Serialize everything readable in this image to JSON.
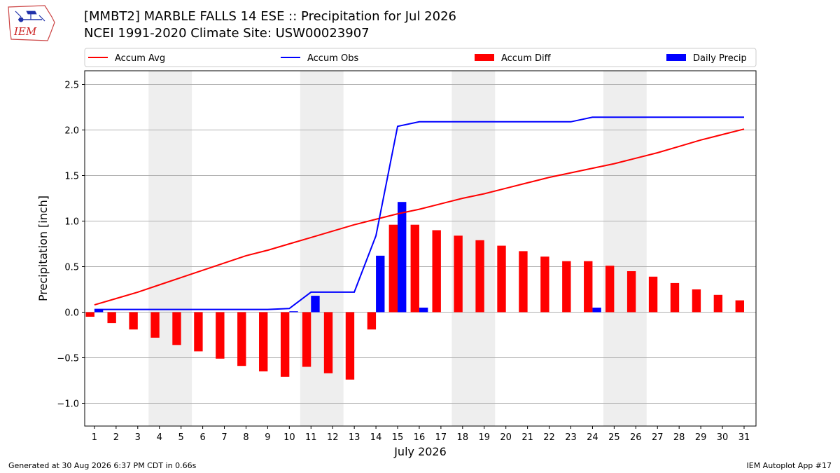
{
  "header": {
    "logo_text": "IEM",
    "title_line1": "[MMBT2] MARBLE FALLS 14 ESE :: Precipitation for Jul 2026",
    "title_line2": "NCEI 1991-2020 Climate Site: USW00023907"
  },
  "footer": {
    "generated": "Generated at 30 Aug 2026 6:37 PM CDT in 0.66s",
    "app": "IEM Autoplot App #17"
  },
  "chart_data": {
    "type": "bar",
    "xlabel": "July 2026",
    "ylabel": "Precipitation [inch]",
    "ylim": [
      -1.25,
      2.65
    ],
    "xlim": [
      0.55,
      31.55
    ],
    "yticks": [
      -1.0,
      -0.5,
      0.0,
      0.5,
      1.0,
      1.5,
      2.0,
      2.5
    ],
    "ytick_labels": [
      "−1.0",
      "−0.5",
      "0.0",
      "0.5",
      "1.0",
      "1.5",
      "2.0",
      "2.5"
    ],
    "grid": "horizontal",
    "weekend_shading": [
      [
        4,
        5
      ],
      [
        11,
        12
      ],
      [
        18,
        19
      ],
      [
        25,
        26
      ]
    ],
    "shading_color": "#eeeeee",
    "legend_position": "top",
    "days": [
      1,
      2,
      3,
      4,
      5,
      6,
      7,
      8,
      9,
      10,
      11,
      12,
      13,
      14,
      15,
      16,
      17,
      18,
      19,
      20,
      21,
      22,
      23,
      24,
      25,
      26,
      27,
      28,
      29,
      30,
      31
    ],
    "series": [
      {
        "name": "Accum Avg",
        "kind": "line",
        "color": "#ff0000",
        "values": [
          0.08,
          0.15,
          0.22,
          0.3,
          0.38,
          0.46,
          0.54,
          0.62,
          0.68,
          0.75,
          0.82,
          0.89,
          0.96,
          1.02,
          1.08,
          1.13,
          1.19,
          1.25,
          1.3,
          1.36,
          1.42,
          1.48,
          1.53,
          1.58,
          1.63,
          1.69,
          1.75,
          1.82,
          1.89,
          1.95,
          2.01
        ]
      },
      {
        "name": "Accum Obs",
        "kind": "line",
        "color": "#0000ff",
        "values": [
          0.03,
          0.03,
          0.03,
          0.03,
          0.03,
          0.03,
          0.03,
          0.03,
          0.03,
          0.04,
          0.22,
          0.22,
          0.22,
          0.84,
          2.04,
          2.09,
          2.09,
          2.09,
          2.09,
          2.09,
          2.09,
          2.09,
          2.09,
          2.14,
          2.14,
          2.14,
          2.14,
          2.14,
          2.14,
          2.14,
          2.14
        ]
      },
      {
        "name": "Accum Diff",
        "kind": "bar",
        "color": "#ff0000",
        "values": [
          -0.05,
          -0.12,
          -0.19,
          -0.28,
          -0.36,
          -0.43,
          -0.51,
          -0.59,
          -0.65,
          -0.71,
          -0.6,
          -0.67,
          -0.74,
          -0.19,
          0.96,
          0.96,
          0.9,
          0.84,
          0.79,
          0.73,
          0.67,
          0.61,
          0.56,
          0.56,
          0.51,
          0.45,
          0.39,
          0.32,
          0.25,
          0.19,
          0.13
        ]
      },
      {
        "name": "Daily Precip",
        "kind": "bar",
        "color": "#0000ff",
        "values": [
          0.03,
          0.0,
          0.0,
          0.0,
          0.0,
          0.0,
          0.0,
          0.0,
          0.0,
          0.01,
          0.18,
          0.0,
          0.0,
          0.62,
          1.21,
          0.05,
          0.0,
          0.0,
          0.0,
          0.0,
          0.0,
          0.0,
          0.0,
          0.05,
          0.0,
          0.0,
          0.0,
          0.0,
          0.0,
          0.0,
          0.0
        ]
      }
    ]
  }
}
